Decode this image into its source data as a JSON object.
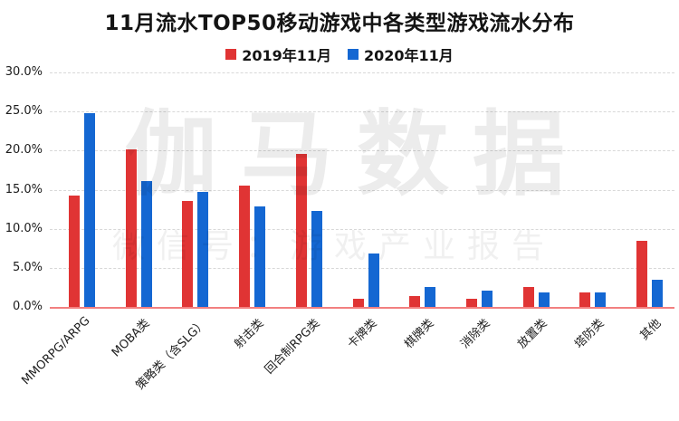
{
  "title": "11月流水TOP50移动游戏中各类型游戏流水分布",
  "legend": {
    "items": [
      {
        "label": "2019年11月",
        "color": "#e03434"
      },
      {
        "label": "2020年11月",
        "color": "#1467d2"
      }
    ]
  },
  "watermark": {
    "line1": "伽马数据",
    "line2": "微信号：游戏产业报告"
  },
  "colors": {
    "series_2019": "#e03434",
    "series_2020": "#1467d2",
    "baseline": "#f28080",
    "gridline": "#d8d8d8"
  },
  "chart_data": {
    "type": "bar",
    "title": "11月流水TOP50移动游戏中各类型游戏流水分布",
    "categories": [
      "MMORPG/ARPG",
      "MOBA类",
      "策略类（含SLG）",
      "射击类",
      "回合制RPG类",
      "卡牌类",
      "棋牌类",
      "消除类",
      "放置类",
      "塔防类",
      "其他"
    ],
    "series": [
      {
        "name": "2019年11月",
        "color": "#e03434",
        "values": [
          14.2,
          20.2,
          13.5,
          15.5,
          19.6,
          1.0,
          1.4,
          1.1,
          2.6,
          1.9,
          8.5
        ]
      },
      {
        "name": "2020年11月",
        "color": "#1467d2",
        "values": [
          24.8,
          16.1,
          14.7,
          12.9,
          12.3,
          6.8,
          2.6,
          2.1,
          1.9,
          1.9,
          3.5
        ]
      }
    ],
    "xlabel": "",
    "ylabel": "",
    "ylim": [
      0,
      30
    ],
    "y_tick_values": [
      30,
      25,
      20,
      15,
      10,
      5,
      0
    ],
    "y_tick_labels": [
      "30.0%",
      "25.0%",
      "20.0%",
      "15.0%",
      "10.0%",
      "5.0%",
      "0.0%"
    ],
    "grid": "horizontal-dashed",
    "legend_position": "top"
  }
}
